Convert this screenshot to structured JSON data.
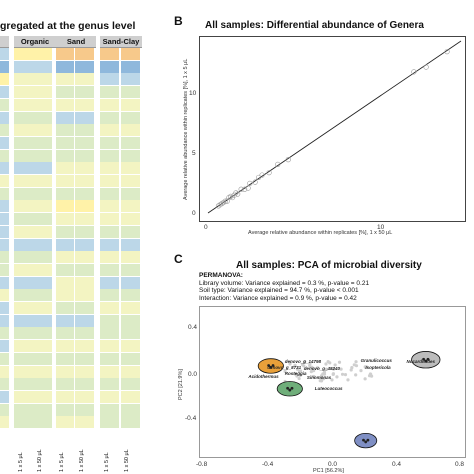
{
  "panel_a": {
    "title": "gregated at the genus level",
    "columns": [
      {
        "label": "Organic",
        "x_labels": [
          "1 x 5 μL",
          "1 x 50 μL"
        ]
      },
      {
        "label": "Sand",
        "x_labels": [
          "1 x 5 μL",
          "1 x 50 μL"
        ]
      },
      {
        "label": "Sand-Clay",
        "x_labels": [
          "1 x 5 μL",
          "1 x 50 μL"
        ]
      }
    ],
    "colors": {
      "yellow": "#fff2a8",
      "light_yellow": "#f3f4c2",
      "pale_green": "#dcebc6",
      "light_blue": "#bcd7e8",
      "mid_blue": "#8fb8dc",
      "orange": "#f7c98b",
      "header": "#cfcfcf"
    }
  },
  "panel_b": {
    "letter": "B",
    "title": "All samples: Differential abundance of Genera",
    "xlabel": "Average relative abundance within replicates [%], 1 x 50 μL",
    "ylabel": "Average relative abundance within replicates [%], 1 x 5 μL",
    "x_ticks": [
      "0",
      "10"
    ],
    "y_ticks": [
      "0",
      "5",
      "10"
    ]
  },
  "panel_c": {
    "letter": "C",
    "title": "All samples: PCA of microbial diversity",
    "permanova": {
      "heading": "PERMANOVA:",
      "line1": "Library volume: Variance explained = 0.3 %, p-value = 0.21",
      "line2": "Soil type: Variance explained = 94.7 %, p-value < 0.001",
      "line3": "Interaction: Variance explained = 0.9 %, p-value = 0.42"
    },
    "xlabel": "PC1 [56.2%]",
    "ylabel": "PC2 [21.9%]",
    "x_ticks": [
      "-0.8",
      "-0.4",
      "0.0",
      "0.4",
      "0.8"
    ],
    "y_ticks": [
      "0.4",
      "0.0",
      "-0.4"
    ],
    "labels": [
      "denovo_g_14798",
      "denovo_g_8731",
      "denovo_g_48240",
      "Acidothermus",
      "Rosteggia",
      "Granulicoccus",
      "Isoptericola",
      "Nocardioides",
      "Sinomonas",
      "Luteococcus"
    ],
    "colors": {
      "orange": "#e8a03a",
      "green": "#6fae7a",
      "blue": "#7f8fc4",
      "gray": "#bcbcbc"
    }
  },
  "chart_data": [
    {
      "type": "heatmap",
      "title": "gregated at the genus level",
      "groups": [
        "Organic",
        "Sand",
        "Sand-Clay"
      ],
      "x_labels": [
        "1 x 5 μL",
        "1 x 50 μL"
      ],
      "rows": 30,
      "cells": [
        [
          "lb",
          "lb",
          "lb",
          "lb",
          "y",
          "y",
          "o",
          "o",
          "o",
          "o"
        ],
        [
          "mb",
          "mb",
          "mb",
          "mb",
          "lb",
          "lb",
          "mb",
          "mb",
          "mb",
          "mb"
        ],
        [
          "lb",
          "y",
          "lb",
          "y",
          "ly",
          "ly",
          "ly",
          "ly",
          "lb",
          "lb"
        ],
        [
          "mb",
          "mb",
          "lb",
          "lb",
          "ly",
          "ly",
          "pg",
          "pg",
          "pg",
          "pg"
        ],
        [
          "lb",
          "lb",
          "pg",
          "pg",
          "ly",
          "ly",
          "ly",
          "ly",
          "ly",
          "ly"
        ],
        [
          "lb",
          "lb",
          "lb",
          "lb",
          "pg",
          "pg",
          "lb",
          "lb",
          "pg",
          "pg"
        ],
        [
          "y",
          "lb",
          "pg",
          "pg",
          "ly",
          "ly",
          "pg",
          "pg",
          "ly",
          "ly"
        ],
        [
          "lb",
          "lb",
          "lb",
          "lb",
          "pg",
          "pg",
          "pg",
          "pg",
          "pg",
          "pg"
        ],
        [
          "pg",
          "pg",
          "pg",
          "pg",
          "pg",
          "pg",
          "pg",
          "pg",
          "pg",
          "pg"
        ],
        [
          "lb",
          "lb",
          "lb",
          "lb",
          "lb",
          "lb",
          "ly",
          "ly",
          "ly",
          "ly"
        ],
        [
          "pg",
          "pg",
          "ly",
          "ly",
          "ly",
          "ly",
          "ly",
          "ly",
          "ly",
          "ly"
        ],
        [
          "lb",
          "lb",
          "pg",
          "pg",
          "pg",
          "pg",
          "pg",
          "pg",
          "pg",
          "pg"
        ],
        [
          "mb",
          "mb",
          "lb",
          "lb",
          "ly",
          "ly",
          "y",
          "y",
          "ly",
          "ly"
        ],
        [
          "lb",
          "lb",
          "lb",
          "lb",
          "pg",
          "pg",
          "ly",
          "ly",
          "ly",
          "ly"
        ],
        [
          "pg",
          "pg",
          "lb",
          "lb",
          "ly",
          "ly",
          "pg",
          "pg",
          "pg",
          "pg"
        ],
        [
          "lb",
          "lb",
          "lb",
          "lb",
          "lb",
          "lb",
          "lb",
          "lb",
          "lb",
          "lb"
        ],
        [
          "lb",
          "lb",
          "pg",
          "pg",
          "pg",
          "pg",
          "ly",
          "ly",
          "ly",
          "ly"
        ],
        [
          "pg",
          "pg",
          "pg",
          "pg",
          "ly",
          "ly",
          "pg",
          "pg",
          "pg",
          "pg"
        ],
        [
          "lb",
          "lb",
          "lb",
          "lb",
          "lb",
          "lb",
          "ly",
          "ly",
          "lb",
          "lb"
        ],
        [
          "ly",
          "ly",
          "ly",
          "ly",
          "pg",
          "pg",
          "ly",
          "ly",
          "pg",
          "pg"
        ],
        [
          "lb",
          "lb",
          "lb",
          "lb",
          "ly",
          "ly",
          "pg",
          "pg",
          "ly",
          "ly"
        ],
        [
          "pg",
          "pg",
          "lb",
          "lb",
          "lb",
          "lb",
          "lb",
          "lb",
          "pg",
          "pg"
        ],
        [
          "ly",
          "ly",
          "pg",
          "pg",
          "pg",
          "pg",
          "pg",
          "pg",
          "pg",
          "pg"
        ],
        [
          "lb",
          "lb",
          "lb",
          "lb",
          "ly",
          "ly",
          "ly",
          "ly",
          "ly",
          "ly"
        ],
        [
          "pg",
          "pg",
          "pg",
          "pg",
          "pg",
          "pg",
          "pg",
          "pg",
          "pg",
          "pg"
        ],
        [
          "lb",
          "lb",
          "ly",
          "ly",
          "ly",
          "ly",
          "ly",
          "ly",
          "ly",
          "ly"
        ],
        [
          "pg",
          "pg",
          "pg",
          "pg",
          "pg",
          "pg",
          "pg",
          "pg",
          "pg",
          "pg"
        ],
        [
          "lb",
          "lb",
          "lb",
          "lb",
          "ly",
          "ly",
          "ly",
          "ly",
          "ly",
          "ly"
        ],
        [
          "ly",
          "ly",
          "pg",
          "pg",
          "pg",
          "pg",
          "pg",
          "pg",
          "pg",
          "pg"
        ],
        [
          "pg",
          "pg",
          "ly",
          "ly",
          "pg",
          "pg",
          "ly",
          "ly",
          "pg",
          "pg"
        ]
      ]
    },
    {
      "type": "scatter",
      "title": "All samples: Differential abundance of Genera",
      "xlabel": "Average relative abundance within replicates [%], 1 x 50 μL",
      "ylabel": "Average relative abundance within replicates [%], 1 x 5 μL",
      "xlim": [
        -0.5,
        14
      ],
      "ylim": [
        -0.5,
        14
      ],
      "reference_line": {
        "x": [
          -0.5,
          14
        ],
        "y": [
          -0.5,
          14
        ]
      },
      "series": [
        {
          "x": [
            13.2,
            12.0,
            11.3,
            4.1,
            3.5,
            3.0,
            2.6,
            2.2,
            1.9,
            1.6,
            1.4,
            1.2,
            1.0,
            0.9,
            0.7,
            0.5,
            0.4,
            0.3,
            0.2,
            0.1,
            1.8,
            2.4,
            0.8,
            1.1,
            0.6
          ],
          "y": [
            13.1,
            11.8,
            11.4,
            4.0,
            3.6,
            2.9,
            2.7,
            2.1,
            2.0,
            1.5,
            1.5,
            1.1,
            1.0,
            0.8,
            0.8,
            0.5,
            0.4,
            0.3,
            0.2,
            0.1,
            1.6,
            2.5,
            0.9,
            1.2,
            0.5
          ]
        }
      ]
    },
    {
      "type": "scatter",
      "title": "All samples: PCA of microbial diversity",
      "xlabel": "PC1 [56.2%]",
      "ylabel": "PC2 [21.9%]",
      "xlim": [
        -0.8,
        0.8
      ],
      "ylim": [
        -0.75,
        0.6
      ],
      "clusters": [
        {
          "name": "orange",
          "center": [
            -0.39,
            0.07
          ],
          "rx": 0.08,
          "ry": 0.07
        },
        {
          "name": "green",
          "center": [
            -0.27,
            -0.15
          ],
          "rx": 0.08,
          "ry": 0.07
        },
        {
          "name": "blue",
          "center": [
            0.21,
            -0.65
          ],
          "rx": 0.07,
          "ry": 0.07
        },
        {
          "name": "gray",
          "center": [
            0.59,
            0.13
          ],
          "rx": 0.09,
          "ry": 0.08
        }
      ],
      "loadings": [
        {
          "label": "denovo_g_14798",
          "x": -0.22,
          "y": 0.1
        },
        {
          "label": "denovo_g_8731",
          "x": -0.33,
          "y": 0.04
        },
        {
          "label": "denovo_g_48240",
          "x": -0.1,
          "y": 0.03
        },
        {
          "label": "Acidothermus",
          "x": -0.45,
          "y": -0.05
        },
        {
          "label": "Rosteggia",
          "x": -0.22,
          "y": -0.02
        },
        {
          "label": "Granulicoccus",
          "x": 0.26,
          "y": 0.11
        },
        {
          "label": "Isoptericola",
          "x": 0.29,
          "y": 0.04
        },
        {
          "label": "Nocardioides",
          "x": 0.55,
          "y": 0.1
        },
        {
          "label": "Sinomonas",
          "x": -0.08,
          "y": -0.06
        },
        {
          "label": "Luteococcus",
          "x": -0.03,
          "y": -0.16
        }
      ]
    }
  ]
}
